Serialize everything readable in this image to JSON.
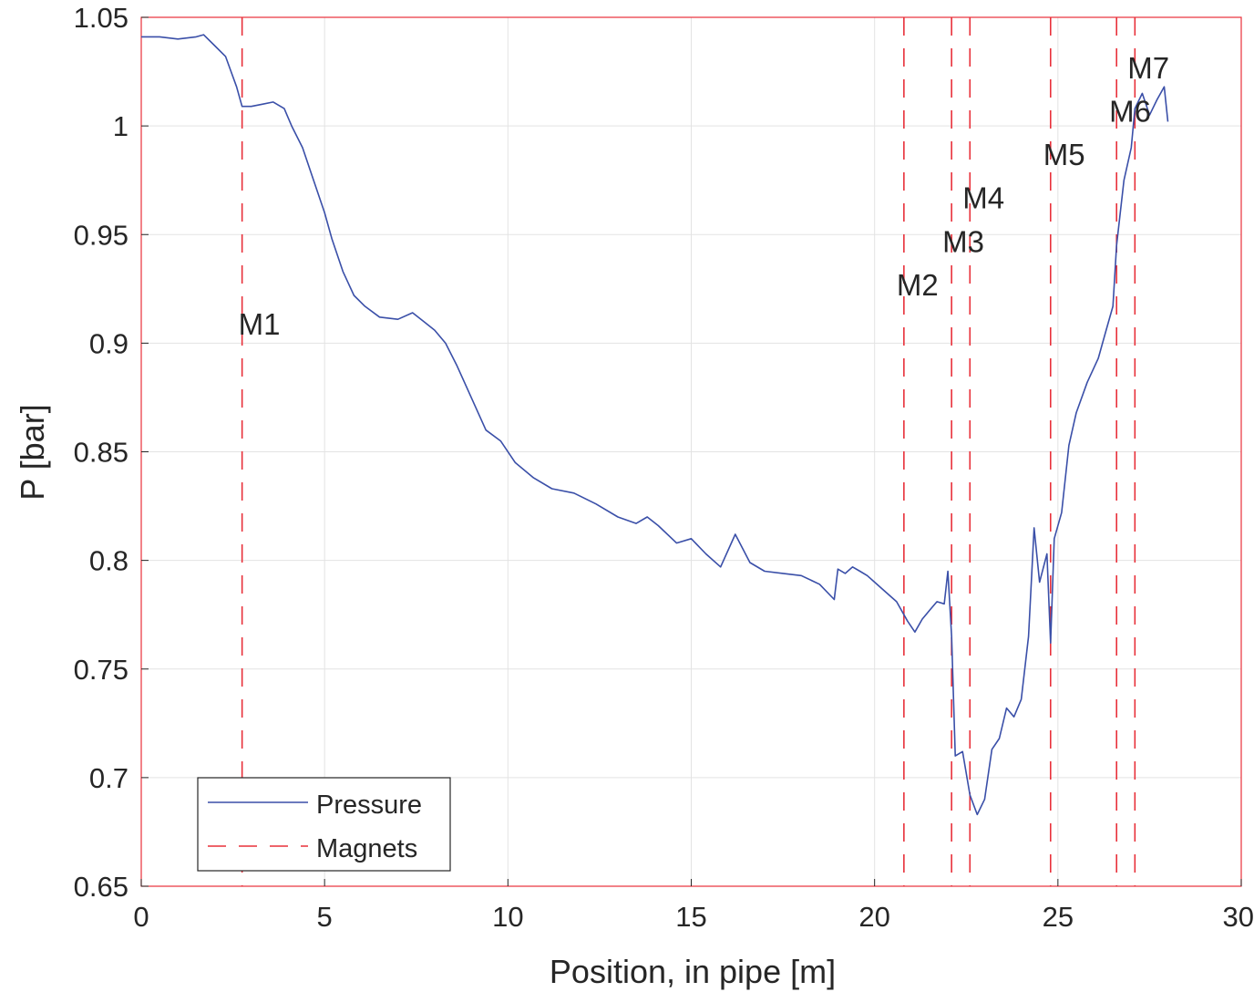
{
  "chart_data": {
    "type": "line",
    "title": "",
    "xlabel": "Position, in pipe [m]",
    "ylabel": "P [bar]",
    "xlim": [
      0,
      30
    ],
    "ylim": [
      0.65,
      1.05
    ],
    "xticks": [
      0,
      5,
      10,
      15,
      20,
      25,
      30
    ],
    "xtick_labels": [
      "0",
      "5",
      "10",
      "15",
      "20",
      "25",
      "30"
    ],
    "yticks": [
      0.65,
      0.7,
      0.75,
      0.8,
      0.85,
      0.9,
      0.95,
      1.0,
      1.05
    ],
    "ytick_labels": [
      "0.65",
      "0.7",
      "0.75",
      "0.8",
      "0.85",
      "0.9",
      "0.95",
      "1",
      "1.05"
    ],
    "grid": true,
    "legend_position": "bottom-left",
    "colors": {
      "pressure": "#3a4fa8",
      "magnets": "#e8303a",
      "grid": "#e3e3e3",
      "axes_box": "#e8303a",
      "text": "#262626"
    },
    "series": [
      {
        "name": "Pressure",
        "style": "solid",
        "x": [
          0,
          0.5,
          1.0,
          1.5,
          1.7,
          2.0,
          2.3,
          2.6,
          2.75,
          3.0,
          3.3,
          3.6,
          3.9,
          4.1,
          4.4,
          4.7,
          5.0,
          5.2,
          5.5,
          5.8,
          6.1,
          6.5,
          7.0,
          7.4,
          7.7,
          8.0,
          8.3,
          8.6,
          9.0,
          9.4,
          9.8,
          10.2,
          10.7,
          11.2,
          11.8,
          12.4,
          13.0,
          13.5,
          13.8,
          14.1,
          14.6,
          15.0,
          15.4,
          15.8,
          16.2,
          16.6,
          17.0,
          17.5,
          18.0,
          18.5,
          18.9,
          19.0,
          19.2,
          19.4,
          19.6,
          19.8,
          20.2,
          20.6,
          20.9,
          21.1,
          21.3,
          21.5,
          21.7,
          21.9,
          22.0,
          22.1,
          22.2,
          22.4,
          22.6,
          22.8,
          23.0,
          23.2,
          23.4,
          23.6,
          23.8,
          24.0,
          24.2,
          24.35,
          24.5,
          24.7,
          24.8,
          24.9,
          25.1,
          25.3,
          25.5,
          25.8,
          26.1,
          26.3,
          26.5,
          26.6,
          26.8,
          27.0,
          27.1,
          27.3,
          27.5,
          27.7,
          27.9,
          28.0
        ],
        "y": [
          1.041,
          1.041,
          1.04,
          1.041,
          1.042,
          1.037,
          1.032,
          1.018,
          1.009,
          1.009,
          1.01,
          1.011,
          1.008,
          1.0,
          0.99,
          0.975,
          0.96,
          0.948,
          0.933,
          0.922,
          0.917,
          0.912,
          0.911,
          0.914,
          0.91,
          0.906,
          0.9,
          0.89,
          0.875,
          0.86,
          0.855,
          0.845,
          0.838,
          0.833,
          0.831,
          0.826,
          0.82,
          0.817,
          0.82,
          0.816,
          0.808,
          0.81,
          0.803,
          0.797,
          0.812,
          0.799,
          0.795,
          0.794,
          0.793,
          0.789,
          0.782,
          0.796,
          0.794,
          0.797,
          0.795,
          0.793,
          0.787,
          0.781,
          0.772,
          0.767,
          0.773,
          0.777,
          0.781,
          0.78,
          0.795,
          0.765,
          0.71,
          0.712,
          0.692,
          0.683,
          0.69,
          0.713,
          0.718,
          0.732,
          0.728,
          0.736,
          0.765,
          0.815,
          0.79,
          0.803,
          0.762,
          0.81,
          0.822,
          0.853,
          0.868,
          0.882,
          0.893,
          0.905,
          0.917,
          0.945,
          0.975,
          0.99,
          1.008,
          1.015,
          1.005,
          1.012,
          1.018,
          1.002
        ]
      },
      {
        "name": "Magnets",
        "style": "dashed",
        "magnets": [
          {
            "label": "M1",
            "x": 2.75
          },
          {
            "label": "M2",
            "x": 20.8
          },
          {
            "label": "M3",
            "x": 22.1
          },
          {
            "label": "M4",
            "x": 22.6
          },
          {
            "label": "M5",
            "x": 24.8
          },
          {
            "label": "M6",
            "x": 26.6
          },
          {
            "label": "M7",
            "x": 27.1
          }
        ]
      }
    ],
    "annotations": [
      {
        "text": "M1",
        "x": 2.75,
        "y": 0.909
      },
      {
        "text": "M2",
        "x": 20.7,
        "y": 0.927
      },
      {
        "text": "M3",
        "x": 21.95,
        "y": 0.947
      },
      {
        "text": "M4",
        "x": 22.5,
        "y": 0.967
      },
      {
        "text": "M5",
        "x": 24.7,
        "y": 0.987
      },
      {
        "text": "M6",
        "x": 26.5,
        "y": 1.007
      },
      {
        "text": "M7",
        "x": 27.0,
        "y": 1.027
      }
    ]
  }
}
